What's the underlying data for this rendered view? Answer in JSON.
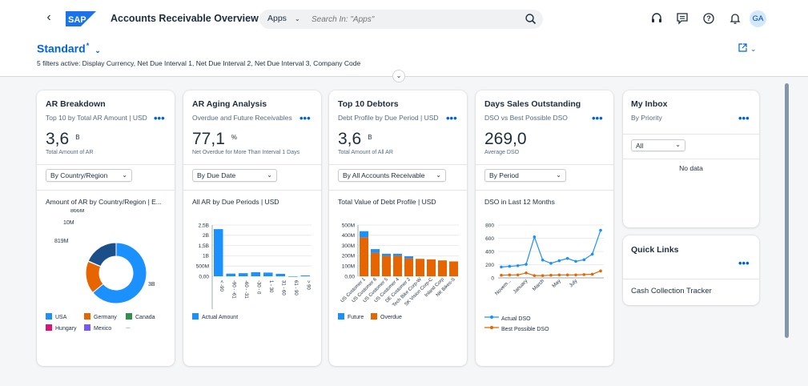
{
  "shell": {
    "back_label": "‹",
    "logo_text": "SAP",
    "app_title": "Accounts Receivable Overview",
    "search_scope": "Apps",
    "search_placeholder": "Search In: \"Apps\"",
    "avatar_initials": "GA",
    "icons": [
      "headset-icon",
      "feedback-icon",
      "help-icon",
      "notification-bell-icon"
    ]
  },
  "header": {
    "variant_name": "Standard",
    "variant_modified_marker": "*",
    "filters_summary": "5 filters active: Display Currency, Net Due Interval 1, Net Due Interval 2, Net Due Interval 3, Company Code"
  },
  "colors": {
    "brand_blue": "#0064d9",
    "series_blue": "#1b90ff",
    "series_orange": "#e76500",
    "series_darkblue": "#1a4f8a",
    "series_green": "#30914c",
    "series_pink": "#df1278",
    "series_purple": "#7858ff"
  },
  "cards": [
    {
      "title": "AR Breakdown",
      "subtitle": "Top 10 by Total AR Amount | USD",
      "kpi_value": "3,6",
      "kpi_unit": "B",
      "kpi_label": "Total Amount of AR",
      "dropdown": "By Country/Region",
      "chart_title": "Amount of AR by Country/Region | E...",
      "more": "•••"
    },
    {
      "title": "AR Aging Analysis",
      "subtitle": "Overdue and Future Receivables",
      "kpi_value": "77,1",
      "kpi_unit": "%",
      "kpi_label": "Net Overdue for More Than Interval 1 Days",
      "dropdown": "By Due Date",
      "chart_title": "All AR by Due Periods | USD",
      "more": "•••"
    },
    {
      "title": "Top 10 Debtors",
      "subtitle": "Debt Profile by Due Period | USD",
      "kpi_value": "3,6",
      "kpi_unit": "B",
      "kpi_label": "Total Amount of All AR",
      "dropdown": "By All Accounts Receivable",
      "chart_title": "Total Value of Debt Profile | USD",
      "more": "•••"
    },
    {
      "title": "Days Sales Outstanding",
      "subtitle": "DSO vs Best Possible DSO",
      "kpi_value": "269,0",
      "kpi_unit": "",
      "kpi_label": "Average DSO",
      "dropdown": "By Period",
      "chart_title": "DSO in Last 12 Months",
      "more": "•••"
    }
  ],
  "inbox": {
    "title": "My Inbox",
    "subtitle": "By Priority",
    "filter": "All",
    "empty_text": "No data",
    "more": "•••"
  },
  "quick_links": {
    "title": "Quick Links",
    "link": "Cash Collection Tracker",
    "more": "•••"
  },
  "chart_data": [
    {
      "type": "pie",
      "title": "Amount of AR by Country/Region | E...",
      "categories": [
        "USA",
        "Germany",
        "Canada",
        "Hungary",
        "Mexico"
      ],
      "legend_more": "...",
      "data_labels": [
        "3B",
        "819M",
        "10M",
        "866M"
      ],
      "slices": [
        {
          "name": "USA",
          "value": 3000,
          "label": "3B",
          "color": "#1b90ff"
        },
        {
          "name": "Germany",
          "value": 819,
          "label": "819M",
          "color": "#e76500"
        },
        {
          "name": "Canada",
          "value": 10,
          "label": "10M",
          "color": "#30914c"
        },
        {
          "name": "Hungary",
          "value": 866,
          "label": "866M",
          "color": "#1a4f8a"
        }
      ],
      "legend_colors": [
        "#1b90ff",
        "#e76500",
        "#30914c",
        "#df1278",
        "#7858ff"
      ]
    },
    {
      "type": "bar",
      "title": "All AR by Due Periods | USD",
      "categories": [
        "< -90",
        "-90 - -61",
        "-60 - -31",
        "-30 - 0",
        "1 - 30",
        "31 - 60",
        "61 - 90",
        "> 90"
      ],
      "series": [
        {
          "name": "Actual Amount",
          "values": [
            2.3,
            0.13,
            0.15,
            0.2,
            0.18,
            0.12,
            0.0,
            0.04
          ]
        }
      ],
      "y_ticks": [
        "2,5B",
        "2B",
        "1,5B",
        "1B",
        "500M",
        "0,00"
      ],
      "ylim": [
        0,
        2.5
      ]
    },
    {
      "type": "bar",
      "stacked": true,
      "title": "Total Value of Debt Profile | USD",
      "categories": [
        "US Customer 1",
        "US Customer 6",
        "US Customer 5",
        "US Customer 4",
        "DE Customer 2",
        "Tech Bike Corp-W",
        "SK Vision Corp-C",
        "Inland Corp",
        "NK Bikes-S"
      ],
      "series": [
        {
          "name": "Future",
          "values": [
            60,
            35,
            20,
            20,
            20,
            0,
            0,
            0,
            0
          ]
        },
        {
          "name": "Overdue",
          "values": [
            380,
            230,
            200,
            200,
            175,
            170,
            165,
            155,
            145
          ]
        }
      ],
      "y_ticks": [
        "500M",
        "400M",
        "300M",
        "200M",
        "100M",
        "0,00"
      ],
      "ylim": [
        0,
        500
      ]
    },
    {
      "type": "line",
      "title": "DSO in Last 12 Months",
      "x_tick_labels": [
        "Novem...",
        "January",
        "March",
        "May",
        "July"
      ],
      "series": [
        {
          "name": "Actual DSO",
          "values": [
            165,
            175,
            185,
            205,
            620,
            270,
            220,
            260,
            295,
            250,
            275,
            360,
            720
          ]
        },
        {
          "name": "Best Possible DSO",
          "values": [
            40,
            45,
            45,
            75,
            35,
            35,
            40,
            45,
            45,
            45,
            50,
            55,
            105
          ]
        }
      ],
      "y_ticks": [
        "800",
        "600",
        "400",
        "200",
        "0"
      ],
      "ylim": [
        0,
        800
      ]
    }
  ]
}
